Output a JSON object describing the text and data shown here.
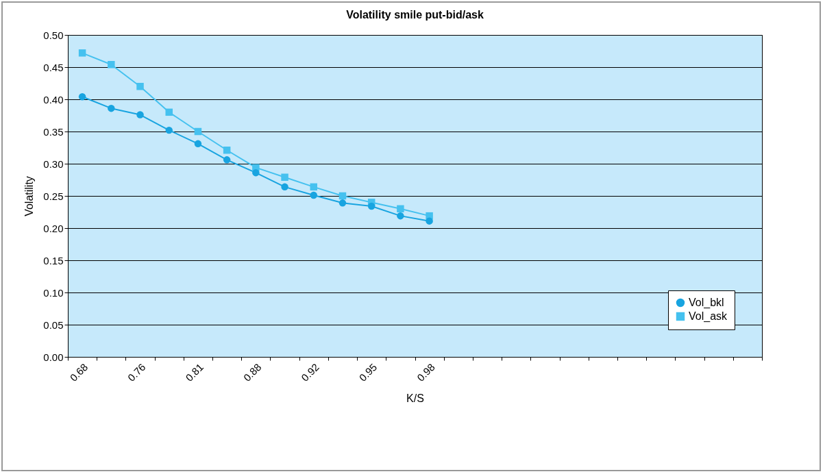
{
  "chart_data": {
    "type": "line",
    "title": "Volatility smile put-bid/ask",
    "xlabel": "K/S",
    "ylabel": "Volatility",
    "categories": [
      "0.68",
      null,
      "0.76",
      null,
      "0.81",
      null,
      "0.88",
      null,
      "0.92",
      null,
      "0.95",
      null,
      "0.98",
      null,
      null,
      null,
      null,
      null,
      null,
      null,
      null,
      null,
      null,
      null
    ],
    "series": [
      {
        "name": "Vol_bkl",
        "color": "#18a4e0",
        "marker": "circle",
        "values": [
          0.404,
          0.386,
          0.376,
          0.352,
          0.331,
          0.306,
          0.286,
          0.264,
          0.251,
          0.239,
          0.234,
          0.219,
          0.211,
          null,
          null,
          null,
          null,
          null,
          null,
          null,
          null,
          null,
          null,
          null
        ]
      },
      {
        "name": "Vol_ask",
        "color": "#45c1ef",
        "marker": "square",
        "values": [
          0.472,
          0.454,
          0.42,
          0.38,
          0.35,
          0.321,
          0.294,
          0.279,
          0.264,
          0.25,
          0.24,
          0.23,
          0.219,
          null,
          null,
          null,
          null,
          null,
          null,
          null,
          null,
          null,
          null,
          null
        ]
      }
    ],
    "ylim": [
      0,
      0.5
    ],
    "yticks": [
      {
        "value": 0,
        "label": "0.00"
      },
      {
        "value": 0.05,
        "label": "0.05"
      },
      {
        "value": 0.1,
        "label": "0.10"
      },
      {
        "value": 0.15,
        "label": "0.15"
      },
      {
        "value": 0.2,
        "label": "0.20"
      },
      {
        "value": 0.25,
        "label": "0.25"
      },
      {
        "value": 0.3,
        "label": "0.30"
      },
      {
        "value": 0.35,
        "label": "0.35"
      },
      {
        "value": 0.4,
        "label": "0.40"
      },
      {
        "value": 0.45,
        "label": "0.45"
      },
      {
        "value": 0.5,
        "label": "0.50"
      }
    ],
    "grid": "y",
    "legend": "bottom right",
    "line_style": "solid"
  }
}
